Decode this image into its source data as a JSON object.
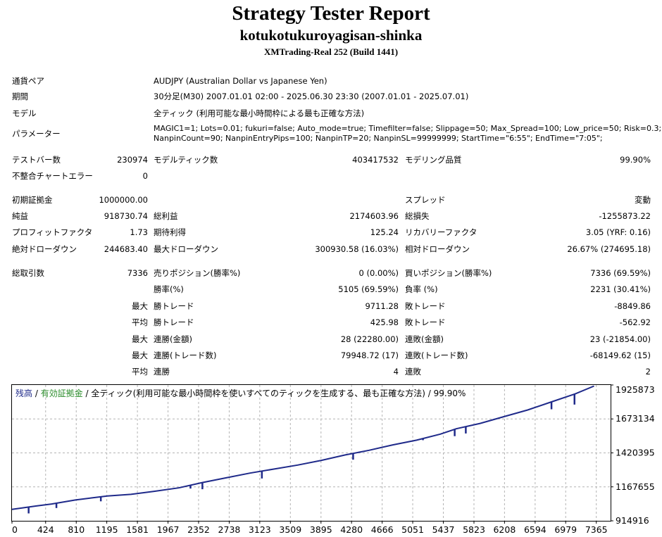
{
  "header": {
    "title": "Strategy Tester Report",
    "subtitle": "kotukotukuroyagisan-shinka",
    "build": "XMTrading-Real 252 (Build 1441)"
  },
  "info": {
    "symbol_label": "通貨ペア",
    "symbol_value": "AUDJPY (Australian Dollar vs Japanese Yen)",
    "period_label": "期間",
    "period_value": "30分足(M30) 2007.01.01 02:00 - 2025.06.30 23:30 (2007.01.01 - 2025.07.01)",
    "model_label": "モデル",
    "model_value": "全ティック (利用可能な最小時間枠による最も正確な方法)",
    "params_label": "パラメーター",
    "params_line1": "MAGIC1=1; Lots=0.01; fukuri=false; Auto_mode=true; Timefilter=false; Slippage=50; Max_Spread=100; Low_price=50; Risk=0.3;",
    "params_line2": "NanpinCount=90; NanpinEntryPips=100; NanpinTP=20; NanpinSL=99999999; StartTime=\"6:55\"; EndTime=\"7:05\";"
  },
  "stats": {
    "bars_label": "テストバー数",
    "bars_value": "230974",
    "ticks_label": "モデルティック数",
    "ticks_value": "403417532",
    "quality_label": "モデリング品質",
    "quality_value": "99.90%",
    "mismatch_label": "不整合チャートエラー",
    "mismatch_value": "0",
    "deposit_label": "初期証拠金",
    "deposit_value": "1000000.00",
    "spread_label": "スプレッド",
    "spread_value": "変動",
    "net_label": "純益",
    "net_value": "918730.74",
    "gross_profit_label": "総利益",
    "gross_profit_value": "2174603.96",
    "gross_loss_label": "総損失",
    "gross_loss_value": "-1255873.22",
    "pf_label": "プロフィットファクタ",
    "pf_value": "1.73",
    "payoff_label": "期待利得",
    "payoff_value": "125.24",
    "recovery_label": "リカバリーファクタ",
    "recovery_value": "3.05 (YRF: 0.16)",
    "abs_dd_label": "絶対ドローダウン",
    "abs_dd_value": "244683.40",
    "max_dd_label": "最大ドローダウン",
    "max_dd_value": "300930.58 (16.03%)",
    "rel_dd_label": "相対ドローダウン",
    "rel_dd_value": "26.67% (274695.18)",
    "trades_label": "総取引数",
    "trades_value": "7336",
    "short_label": "売りポジション(勝率%)",
    "short_value": "0 (0.00%)",
    "long_label": "買いポジション(勝率%)",
    "long_value": "7336 (69.59%)",
    "win_rate_label": "勝率(%)",
    "win_rate_value": "5105 (69.59%)",
    "loss_rate_label": "負率 (%)",
    "loss_rate_value": "2231 (30.41%)",
    "max_prefix": "最大",
    "avg_prefix": "平均",
    "max_win_label": "勝トレード",
    "max_win_value": "9711.28",
    "max_loss_label": "敗トレード",
    "max_loss_value": "-8849.86",
    "avg_win_label": "勝トレード",
    "avg_win_value": "425.98",
    "avg_loss_label": "敗トレード",
    "avg_loss_value": "-562.92",
    "cons_win_amt_label": "連勝(金額)",
    "cons_win_amt_value": "28 (22280.00)",
    "cons_loss_amt_label": "連敗(金額)",
    "cons_loss_amt_value": "23 (-21854.00)",
    "cons_win_cnt_label": "連勝(トレード数)",
    "cons_win_cnt_value": "79948.72 (17)",
    "cons_loss_cnt_label": "連敗(トレード数)",
    "cons_loss_cnt_value": "-68149.62 (15)",
    "avg_cons_win_label": "連勝",
    "avg_cons_win_value": "4",
    "avg_cons_loss_label": "連敗",
    "avg_cons_loss_value": "2"
  },
  "chart_legend": {
    "balance": "残高",
    "sep1": " / ",
    "equity": "有効証拠金",
    "sep2": " / ",
    "model_text": "全ティック(利用可能な最小時間枠を使いすべてのティックを生成する、最も正確な方法) / 99.90%"
  },
  "colors": {
    "balance": "#1f2a8a",
    "equity": "#2a8c2a",
    "grid": "#b4b4b4",
    "frame": "#000000"
  },
  "chart_data": {
    "type": "line",
    "x_ticks": [
      "0",
      "424",
      "810",
      "1195",
      "1581",
      "1967",
      "2352",
      "2738",
      "3123",
      "3509",
      "3895",
      "4280",
      "4666",
      "5051",
      "5437",
      "5823",
      "6208",
      "6594",
      "6979",
      "7365"
    ],
    "y_ticks": [
      "1925873",
      "1673134",
      "1420395",
      "1167655",
      "914916"
    ],
    "xlim": [
      0,
      7545
    ],
    "ylim": [
      914916,
      1925873
    ],
    "grid": true,
    "series": [
      {
        "name": "残高",
        "x": [
          0,
          300,
          500,
          800,
          1000,
          1200,
          1500,
          1800,
          2100,
          2400,
          2700,
          3000,
          3300,
          3600,
          3900,
          4200,
          4500,
          4800,
          5100,
          5400,
          5600,
          5900,
          6200,
          6500,
          6800,
          7100,
          7336
        ],
        "y": [
          1000000,
          1025000,
          1040000,
          1070000,
          1085000,
          1100000,
          1112000,
          1135000,
          1160000,
          1200000,
          1235000,
          1270000,
          1300000,
          1330000,
          1365000,
          1405000,
          1440000,
          1480000,
          1515000,
          1560000,
          1600000,
          1640000,
          1690000,
          1740000,
          1800000,
          1860000,
          1918000
        ]
      }
    ],
    "dips": [
      {
        "x": 210,
        "y": 970000
      },
      {
        "x": 560,
        "y": 1010000
      },
      {
        "x": 1120,
        "y": 1060000
      },
      {
        "x": 2250,
        "y": 1155000
      },
      {
        "x": 2400,
        "y": 1150000
      },
      {
        "x": 3150,
        "y": 1230000
      },
      {
        "x": 4300,
        "y": 1370000
      },
      {
        "x": 5180,
        "y": 1515000
      },
      {
        "x": 5580,
        "y": 1545000
      },
      {
        "x": 5720,
        "y": 1565000
      },
      {
        "x": 6800,
        "y": 1745000
      },
      {
        "x": 7090,
        "y": 1780000
      }
    ]
  }
}
